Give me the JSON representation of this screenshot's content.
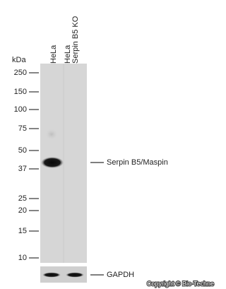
{
  "unit": "kDa",
  "markers": [
    250,
    150,
    100,
    75,
    50,
    37,
    25,
    20,
    15,
    10
  ],
  "lanes": [
    [
      "HeLa"
    ],
    [
      "HeLa",
      "Serpin B5 KO"
    ]
  ],
  "bands": [
    "Serpin B5/Maspin",
    "GAPDH"
  ],
  "copyright": "Copyright © Bio-Techne"
}
